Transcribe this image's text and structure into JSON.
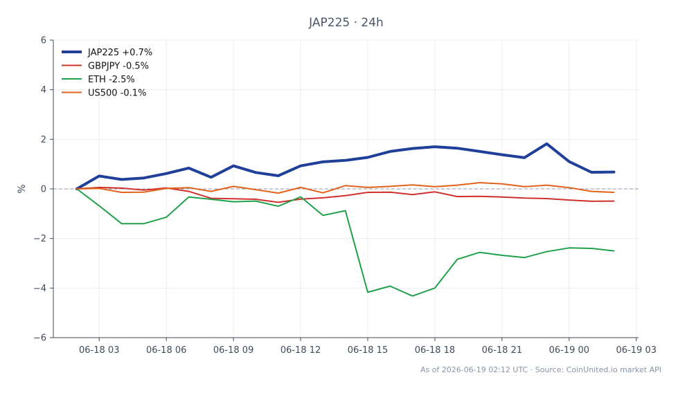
{
  "chart_data": {
    "type": "line",
    "title": "JAP225 · 24h",
    "ylabel": "%",
    "xlabel": "",
    "ylim": [
      -6,
      6
    ],
    "xlim": [
      -1.05,
      25.1
    ],
    "yticks": [
      {
        "value": 6,
        "label": "6"
      },
      {
        "value": 4,
        "label": "4"
      },
      {
        "value": 2,
        "label": "2"
      },
      {
        "value": 0,
        "label": "0"
      },
      {
        "value": -2,
        "label": "−2"
      },
      {
        "value": -4,
        "label": "−4"
      },
      {
        "value": -6,
        "label": "−6"
      }
    ],
    "xticks": [
      {
        "value": 1,
        "label": "06-18 03"
      },
      {
        "value": 4,
        "label": "06-18 06"
      },
      {
        "value": 7,
        "label": "06-18 09"
      },
      {
        "value": 10,
        "label": "06-18 12"
      },
      {
        "value": 13,
        "label": "06-18 15"
      },
      {
        "value": 16,
        "label": "06-18 18"
      },
      {
        "value": 19,
        "label": "06-18 21"
      },
      {
        "value": 22,
        "label": "06-19 00"
      },
      {
        "value": 25,
        "label": "06-19 03"
      }
    ],
    "x": [
      0,
      1,
      2,
      3,
      4,
      5,
      6,
      7,
      8,
      9,
      10,
      11,
      12,
      13,
      14,
      15,
      16,
      17,
      18,
      19,
      20,
      21,
      22,
      23,
      24
    ],
    "series": [
      {
        "name": "JAP225 +0.7%",
        "color": "#1f3f99",
        "width": 4,
        "values": [
          0,
          0.52,
          0.38,
          0.44,
          0.62,
          0.84,
          0.47,
          0.93,
          0.66,
          0.53,
          0.93,
          1.09,
          1.15,
          1.27,
          1.51,
          1.63,
          1.7,
          1.64,
          1.51,
          1.38,
          1.26,
          1.82,
          1.1,
          0.67,
          0.68
        ]
      },
      {
        "name": "GBPJPY -0.5%",
        "color": "#d0302b",
        "width": 2,
        "values": [
          0,
          0.06,
          0.03,
          -0.05,
          0.04,
          -0.1,
          -0.38,
          -0.4,
          -0.42,
          -0.54,
          -0.41,
          -0.36,
          -0.27,
          -0.14,
          -0.13,
          -0.23,
          -0.12,
          -0.31,
          -0.3,
          -0.33,
          -0.37,
          -0.39,
          -0.45,
          -0.5,
          -0.49
        ]
      },
      {
        "name": "ETH -2.5%",
        "color": "#20a04a",
        "width": 2,
        "values": [
          0,
          -0.68,
          -1.4,
          -1.4,
          -1.14,
          -0.33,
          -0.42,
          -0.52,
          -0.49,
          -0.7,
          -0.32,
          -1.07,
          -0.88,
          -4.17,
          -3.92,
          -4.32,
          -4.0,
          -2.84,
          -2.56,
          -2.68,
          -2.77,
          -2.53,
          -2.38,
          -2.4,
          -2.5
        ]
      },
      {
        "name": "US500 -0.1%",
        "color": "#e0621c",
        "width": 2,
        "values": [
          0,
          0.02,
          -0.14,
          -0.13,
          0.02,
          0.05,
          -0.1,
          0.1,
          -0.03,
          -0.17,
          0.06,
          -0.16,
          0.13,
          0.06,
          0.1,
          0.16,
          0.09,
          0.15,
          0.25,
          0.2,
          0.09,
          0.15,
          0.05,
          -0.1,
          -0.14
        ]
      }
    ],
    "baseline": {
      "value": 0,
      "color": "#8a9ab0"
    },
    "grid": true,
    "legend": {
      "position": "top-left"
    }
  },
  "footer": {
    "note": "As of 2026-06-19 02:12 UTC · Source: CoinUnited.io market API"
  },
  "colors": {
    "axis": "#3f4a5a",
    "grid": "#ececf0",
    "title": "#4a5568",
    "footer": "#8a94a6"
  }
}
